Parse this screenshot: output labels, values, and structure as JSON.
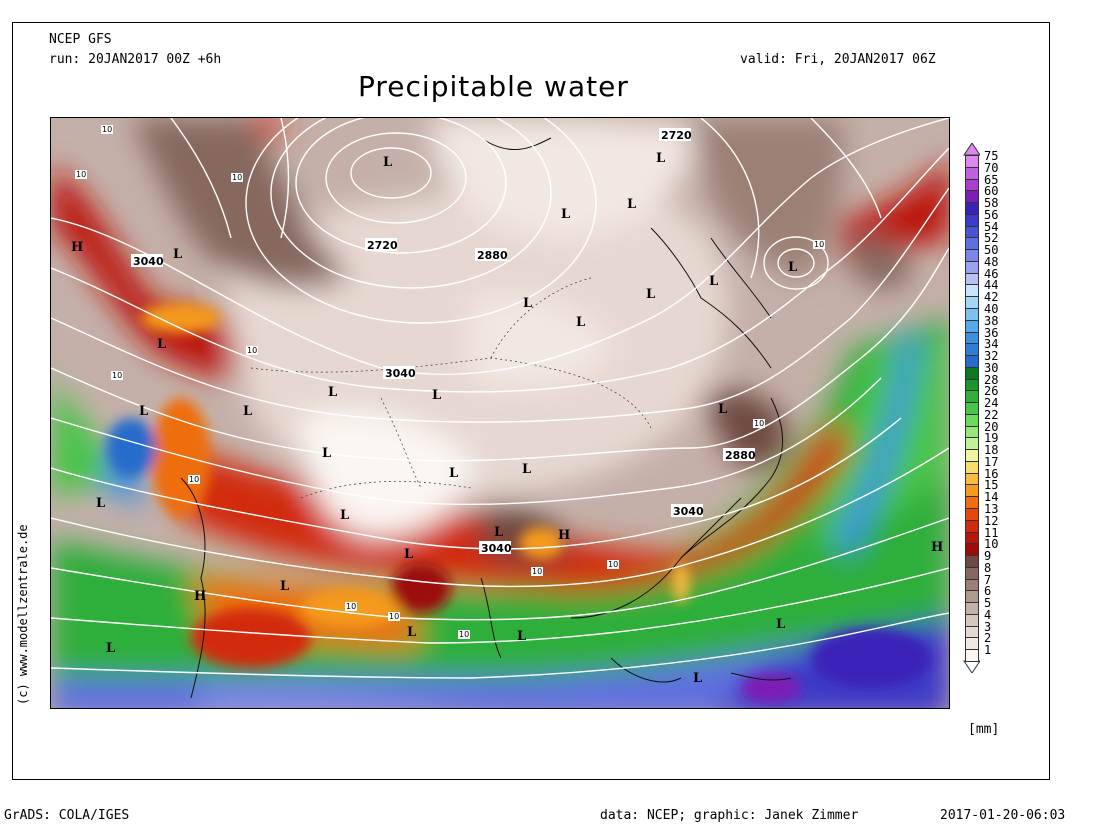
{
  "header": {
    "model": "NCEP GFS",
    "run": "run: 20JAN2017 00Z +6h",
    "valid": "valid: Fri, 20JAN2017 06Z",
    "title": "Precipitable water"
  },
  "legend": {
    "unit": "[mm]",
    "levels": [
      {
        "label": "75",
        "color": "#dd88ee"
      },
      {
        "label": "70",
        "color": "#c25fe0"
      },
      {
        "label": "65",
        "color": "#a83fd0"
      },
      {
        "label": "60",
        "color": "#7d1fb5"
      },
      {
        "label": "58",
        "color": "#3a22b8"
      },
      {
        "label": "56",
        "color": "#3c3ac8"
      },
      {
        "label": "54",
        "color": "#4a52d5"
      },
      {
        "label": "52",
        "color": "#5f6ee0"
      },
      {
        "label": "50",
        "color": "#7a86e8"
      },
      {
        "label": "48",
        "color": "#9aa2ee"
      },
      {
        "label": "46",
        "color": "#b8c0f4"
      },
      {
        "label": "44",
        "color": "#c8e4fa"
      },
      {
        "label": "42",
        "color": "#a6d6f6"
      },
      {
        "label": "40",
        "color": "#7cc2f0"
      },
      {
        "label": "38",
        "color": "#55aaea"
      },
      {
        "label": "36",
        "color": "#3c92e0"
      },
      {
        "label": "34",
        "color": "#2f7dd6"
      },
      {
        "label": "32",
        "color": "#266ccc"
      },
      {
        "label": "30",
        "color": "#0a7a22"
      },
      {
        "label": "28",
        "color": "#1a962e"
      },
      {
        "label": "26",
        "color": "#2fae3a"
      },
      {
        "label": "24",
        "color": "#48c44a"
      },
      {
        "label": "22",
        "color": "#6cd85c"
      },
      {
        "label": "20",
        "color": "#94e87a"
      },
      {
        "label": "19",
        "color": "#c0f09a"
      },
      {
        "label": "18",
        "color": "#f0f4a0"
      },
      {
        "label": "17",
        "color": "#f8dc6a"
      },
      {
        "label": "16",
        "color": "#f8bc3c"
      },
      {
        "label": "15",
        "color": "#f49a1c"
      },
      {
        "label": "14",
        "color": "#ee6e10"
      },
      {
        "label": "13",
        "color": "#e24810"
      },
      {
        "label": "12",
        "color": "#d22a0e"
      },
      {
        "label": "11",
        "color": "#bc140c"
      },
      {
        "label": "10",
        "color": "#9c0c0a"
      },
      {
        "label": "9",
        "color": "#6e4a40"
      },
      {
        "label": "8",
        "color": "#86685e"
      },
      {
        "label": "7",
        "color": "#9c8076"
      },
      {
        "label": "6",
        "color": "#b09a90"
      },
      {
        "label": "5",
        "color": "#c4b0a8"
      },
      {
        "label": "4",
        "color": "#d6c6be"
      },
      {
        "label": "3",
        "color": "#e6d8d0"
      },
      {
        "label": "2",
        "color": "#f2e8e2"
      },
      {
        "label": "1",
        "color": "#fbf6f2"
      }
    ]
  },
  "map": {
    "contour_labels": [
      "2720",
      "2880",
      "3040",
      "10"
    ],
    "pressure_centers": [
      "L",
      "H"
    ]
  },
  "footer": {
    "credit_vertical": "(c) www.modellzentrale.de",
    "software": "GrADS: COLA/IGES",
    "source": "data: NCEP; graphic: Janek Zimmer",
    "timestamp": "2017-01-20-06:03"
  }
}
